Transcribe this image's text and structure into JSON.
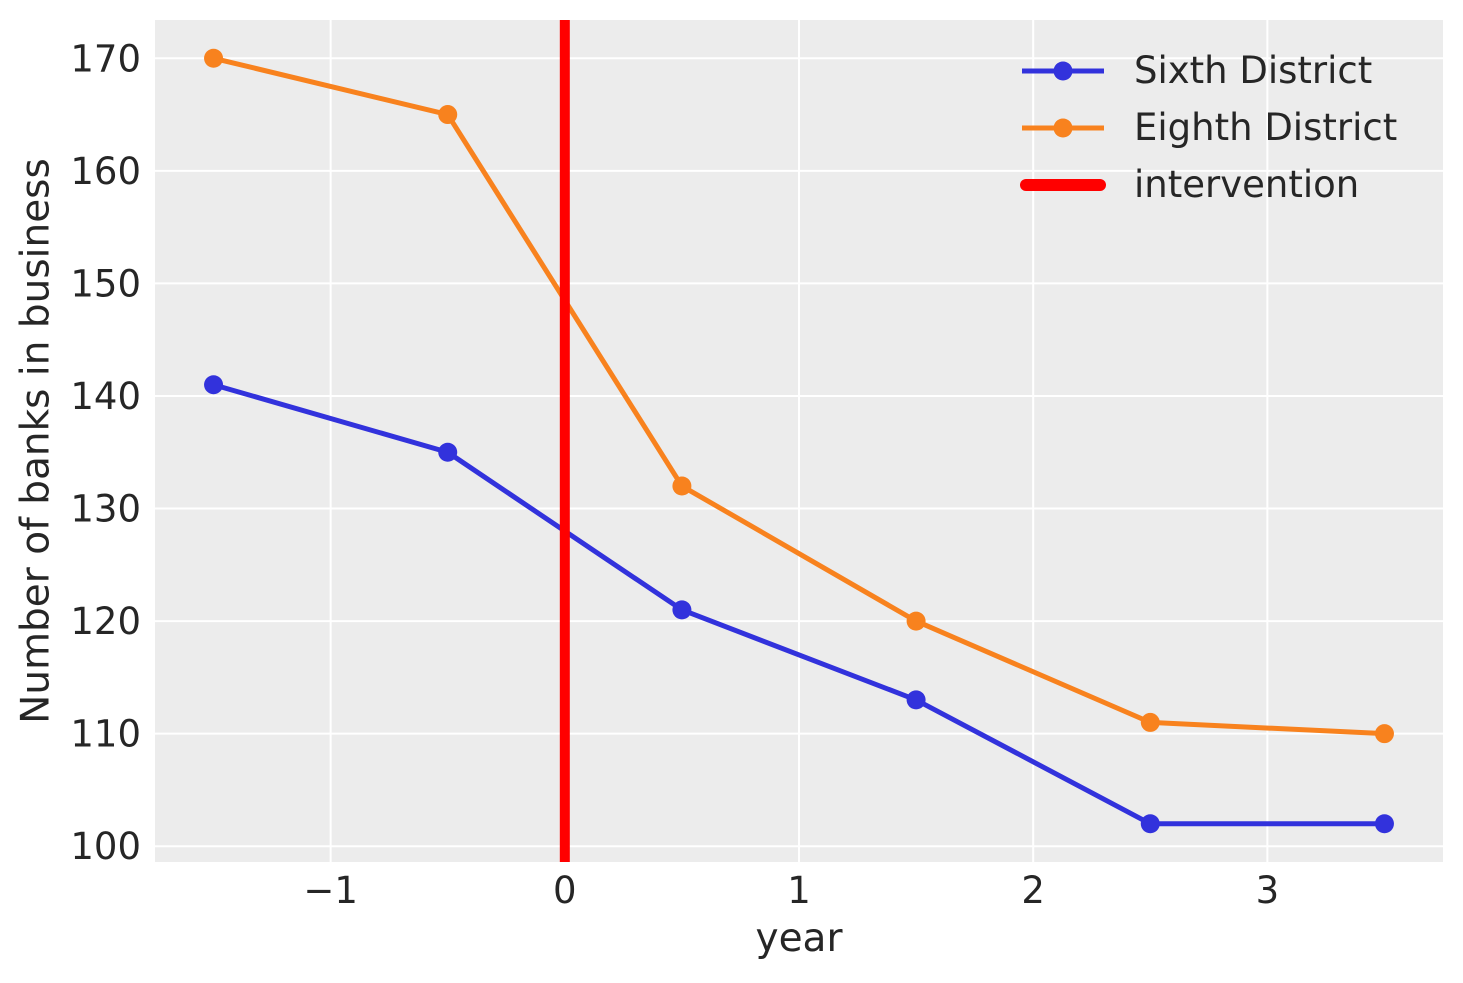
{
  "figure": {
    "background": "#ffffff",
    "plot_background": "#ececec",
    "grid_color": "#ffffff",
    "text_color": "#262626"
  },
  "chart_data": {
    "type": "line",
    "title": "",
    "xlabel": "year",
    "ylabel": "Number of banks in business",
    "x": [
      -1.5,
      -0.5,
      0.5,
      1.5,
      2.5,
      3.5
    ],
    "series": [
      {
        "name": "Sixth District",
        "color": "#3232dc",
        "marker": "circle",
        "values": [
          141,
          135,
          121,
          113,
          102,
          102
        ]
      },
      {
        "name": "Eighth District",
        "color": "#f8821e",
        "marker": "circle",
        "values": [
          170,
          165,
          132,
          120,
          111,
          110
        ]
      }
    ],
    "vline": {
      "label": "intervention",
      "x": 0,
      "color": "#ff0000"
    },
    "xlim": [
      -1.75,
      3.75
    ],
    "ylim": [
      98.6,
      173.4
    ],
    "xticks": [
      -1,
      0,
      1,
      2,
      3
    ],
    "xtick_labels": [
      "−1",
      "0",
      "1",
      "2",
      "3"
    ],
    "yticks": [
      100,
      110,
      120,
      130,
      140,
      150,
      160,
      170
    ],
    "grid": true,
    "legend_position": "upper right"
  }
}
